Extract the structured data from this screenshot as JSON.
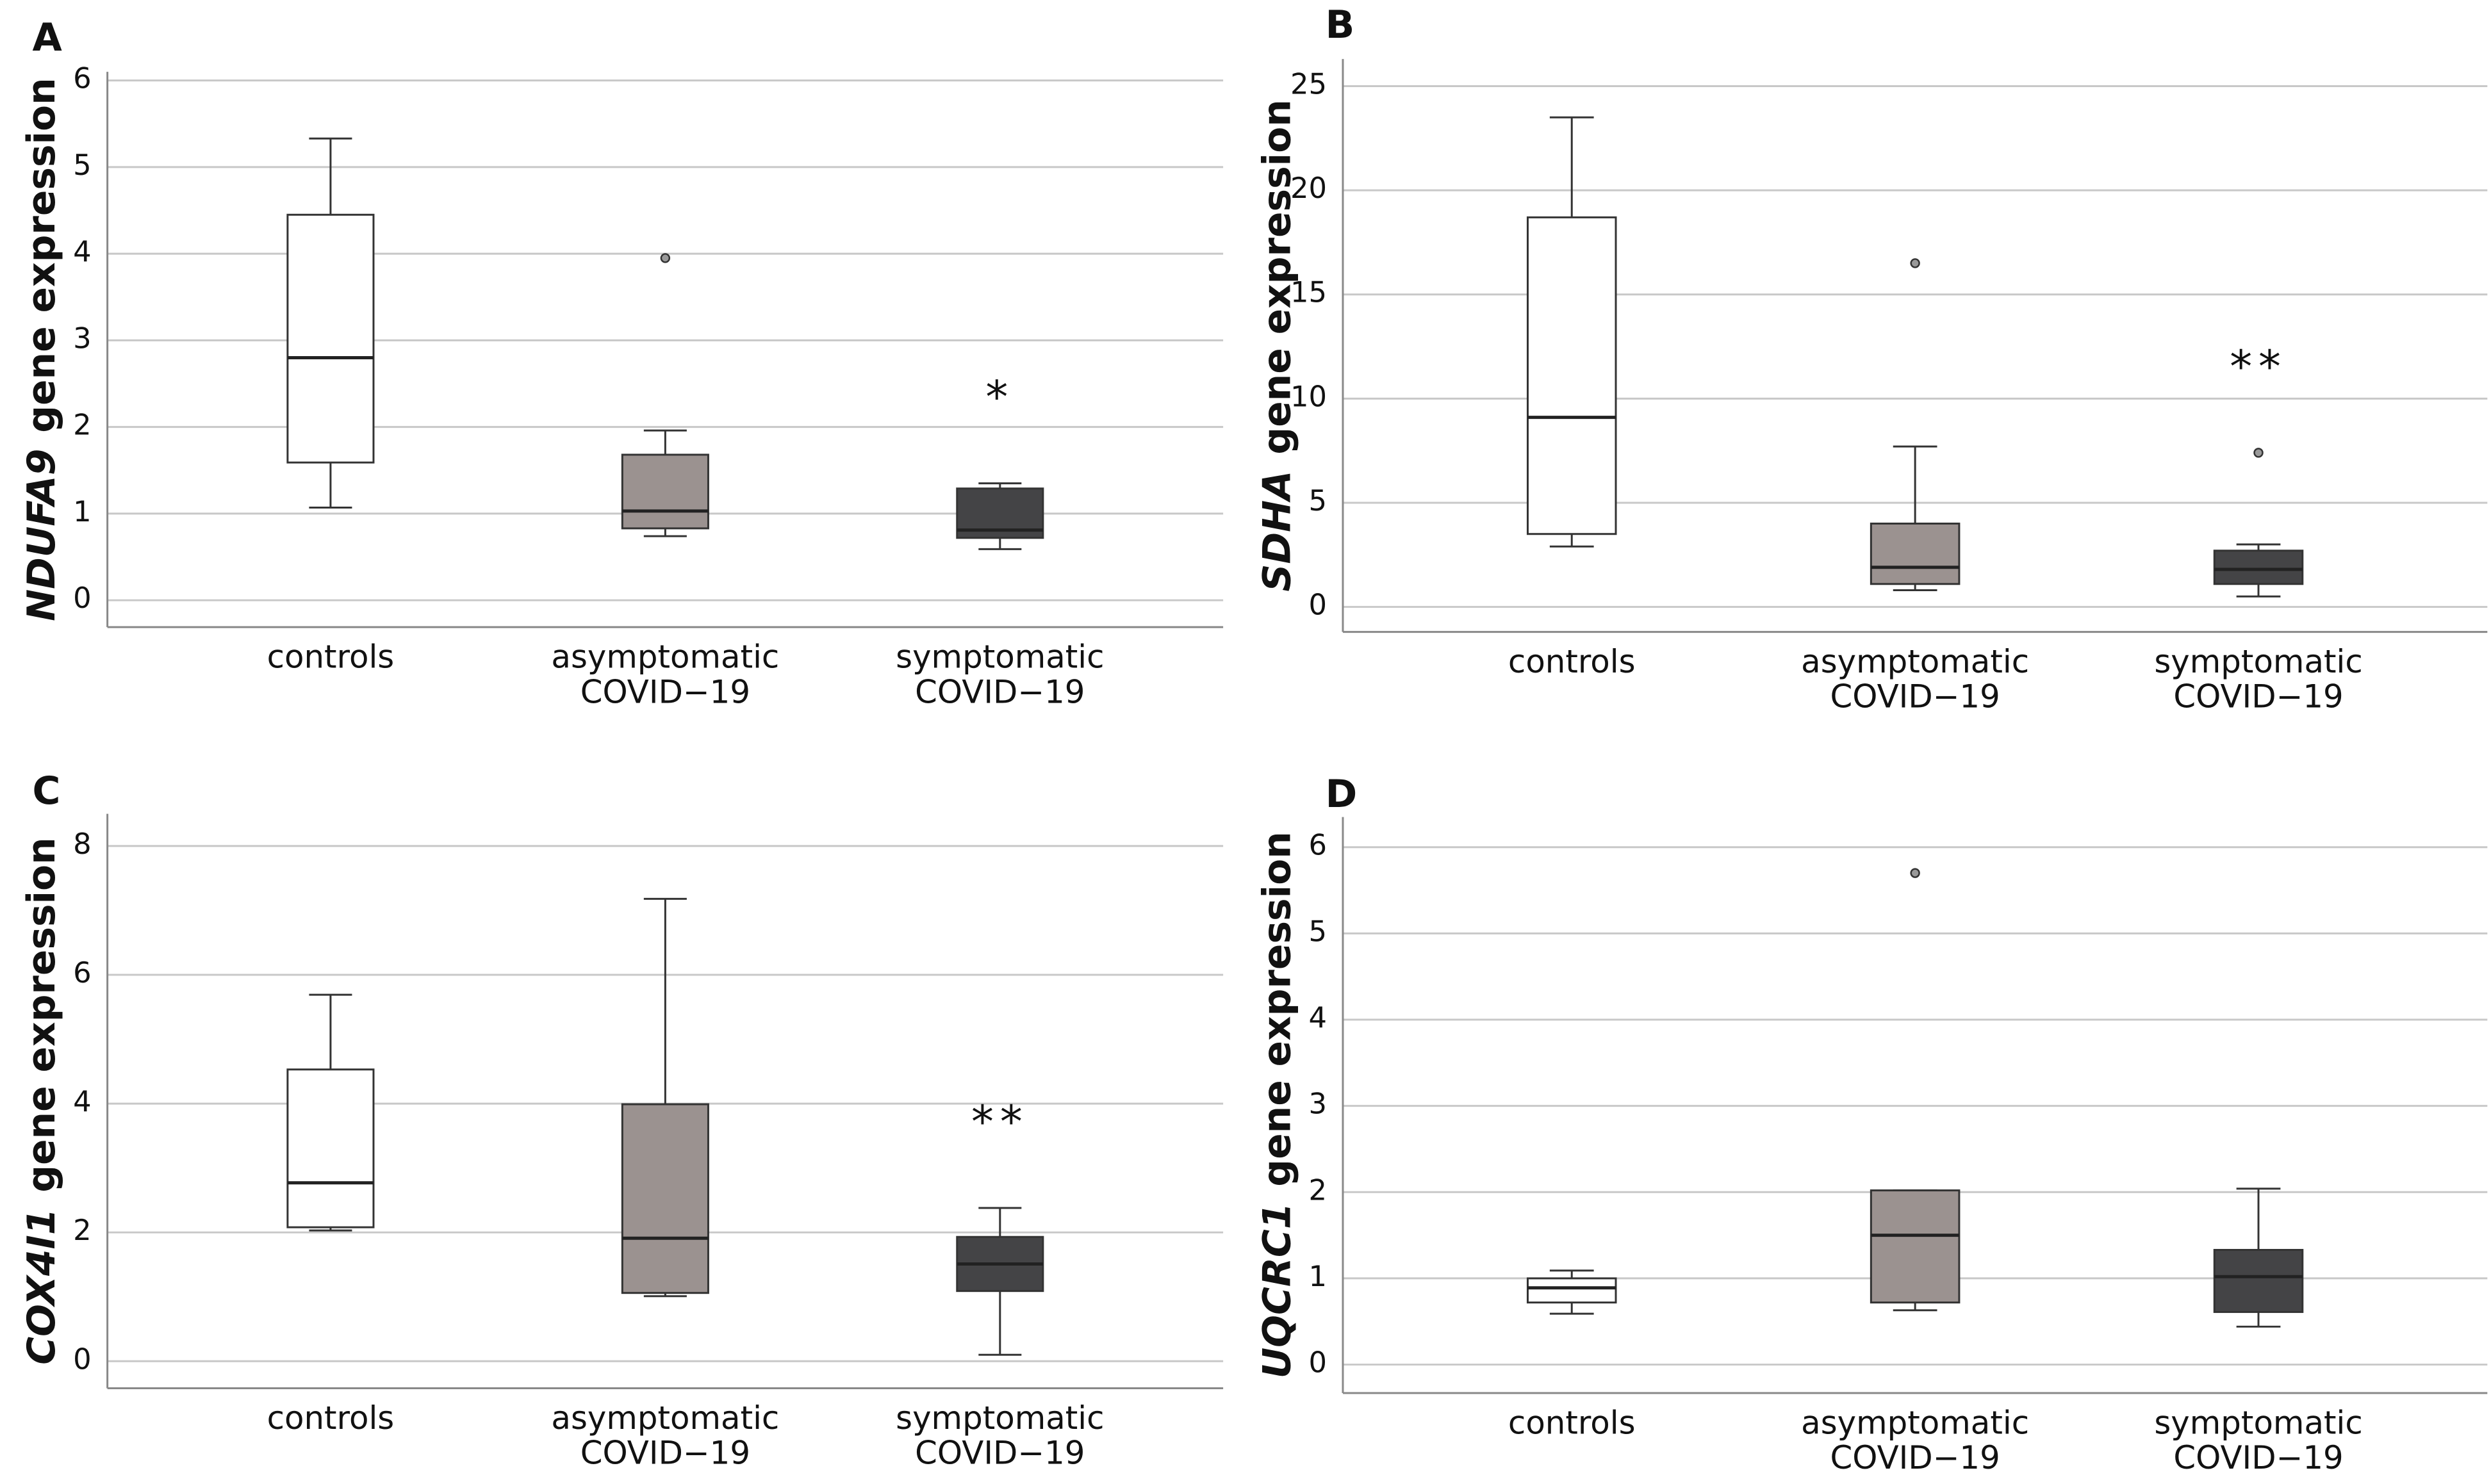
{
  "chart_data": [
    {
      "type": "box",
      "panel": "A",
      "ylabel_gene": "NDUFA9",
      "ylabel_rest": "gene expression",
      "categories": [
        [
          "controls"
        ],
        [
          "asymptomatic",
          "COVID−19"
        ],
        [
          "symptomatic",
          "COVID−19"
        ]
      ],
      "boxes": [
        {
          "color": "#ffffff",
          "whislo": 1.07,
          "q1": 1.59,
          "med": 2.8,
          "q3": 4.45,
          "whishi": 5.33,
          "fliers": []
        },
        {
          "color": "#9b9290",
          "whislo": 0.74,
          "q1": 0.83,
          "med": 1.03,
          "q3": 1.68,
          "whishi": 1.96,
          "fliers": [
            3.95
          ]
        },
        {
          "color": "#444446",
          "whislo": 0.59,
          "q1": 0.72,
          "med": 0.81,
          "q3": 1.29,
          "whishi": 1.35,
          "fliers": []
        }
      ],
      "annotations": [
        {
          "text": "*",
          "category": 2
        }
      ],
      "ylim": [
        -0.31,
        6.1
      ],
      "yticks": [
        0,
        1,
        2,
        3,
        4,
        5,
        6
      ],
      "grid": true
    },
    {
      "type": "box",
      "panel": "B",
      "ylabel_gene": "SDHA",
      "ylabel_rest": "gene expression",
      "categories": [
        [
          "controls"
        ],
        [
          "asymptomatic",
          "COVID−19"
        ],
        [
          "symptomatic",
          "COVID−19"
        ]
      ],
      "boxes": [
        {
          "color": "#ffffff",
          "whislo": 2.9,
          "q1": 3.5,
          "med": 9.1,
          "q3": 18.7,
          "whishi": 23.5,
          "fliers": []
        },
        {
          "color": "#9b9290",
          "whislo": 0.8,
          "q1": 1.1,
          "med": 1.9,
          "q3": 4.0,
          "whishi": 7.7,
          "fliers": [
            16.5
          ]
        },
        {
          "color": "#444446",
          "whislo": 0.5,
          "q1": 1.1,
          "med": 1.8,
          "q3": 2.7,
          "whishi": 3.0,
          "fliers": [
            7.4
          ]
        }
      ],
      "annotations": [
        {
          "text": "**",
          "category": 2
        }
      ],
      "ylim": [
        -1.2,
        26.3
      ],
      "yticks": [
        0,
        5,
        10,
        15,
        20,
        25
      ],
      "grid": true
    },
    {
      "type": "box",
      "panel": "C",
      "ylabel_gene": "COX4I1",
      "ylabel_rest": "gene expression",
      "categories": [
        [
          "controls"
        ],
        [
          "asymptomatic",
          "COVID−19"
        ],
        [
          "symptomatic",
          "COVID−19"
        ]
      ],
      "boxes": [
        {
          "color": "#ffffff",
          "whislo": 2.03,
          "q1": 2.08,
          "med": 2.77,
          "q3": 4.53,
          "whishi": 5.69,
          "fliers": []
        },
        {
          "color": "#9b9290",
          "whislo": 1.01,
          "q1": 1.06,
          "med": 1.91,
          "q3": 3.99,
          "whishi": 7.18,
          "fliers": []
        },
        {
          "color": "#444446",
          "whislo": 0.1,
          "q1": 1.09,
          "med": 1.51,
          "q3": 1.93,
          "whishi": 2.38,
          "fliers": []
        }
      ],
      "annotations": [
        {
          "text": "**",
          "category": 2
        }
      ],
      "ylim": [
        -0.42,
        8.5
      ],
      "yticks": [
        0,
        2,
        4,
        6,
        8
      ],
      "grid": true
    },
    {
      "type": "box",
      "panel": "D",
      "ylabel_gene": "UQCRC1",
      "ylabel_rest": "gene expression",
      "categories": [
        [
          "controls"
        ],
        [
          "asymptomatic",
          "COVID−19"
        ],
        [
          "symptomatic",
          "COVID−19"
        ]
      ],
      "boxes": [
        {
          "color": "#ffffff",
          "whislo": 0.59,
          "q1": 0.72,
          "med": 0.89,
          "q3": 1.0,
          "whishi": 1.09,
          "fliers": []
        },
        {
          "color": "#9b9290",
          "whislo": 0.63,
          "q1": 0.72,
          "med": 1.5,
          "q3": 2.02,
          "whishi": 2.02,
          "fliers": [
            5.7
          ]
        },
        {
          "color": "#444446",
          "whislo": 0.44,
          "q1": 0.61,
          "med": 1.02,
          "q3": 1.33,
          "whishi": 2.04,
          "fliers": []
        }
      ],
      "annotations": [],
      "ylim": [
        -0.33,
        6.35
      ],
      "yticks": [
        0,
        1,
        2,
        3,
        4,
        5,
        6
      ],
      "grid": true
    }
  ]
}
